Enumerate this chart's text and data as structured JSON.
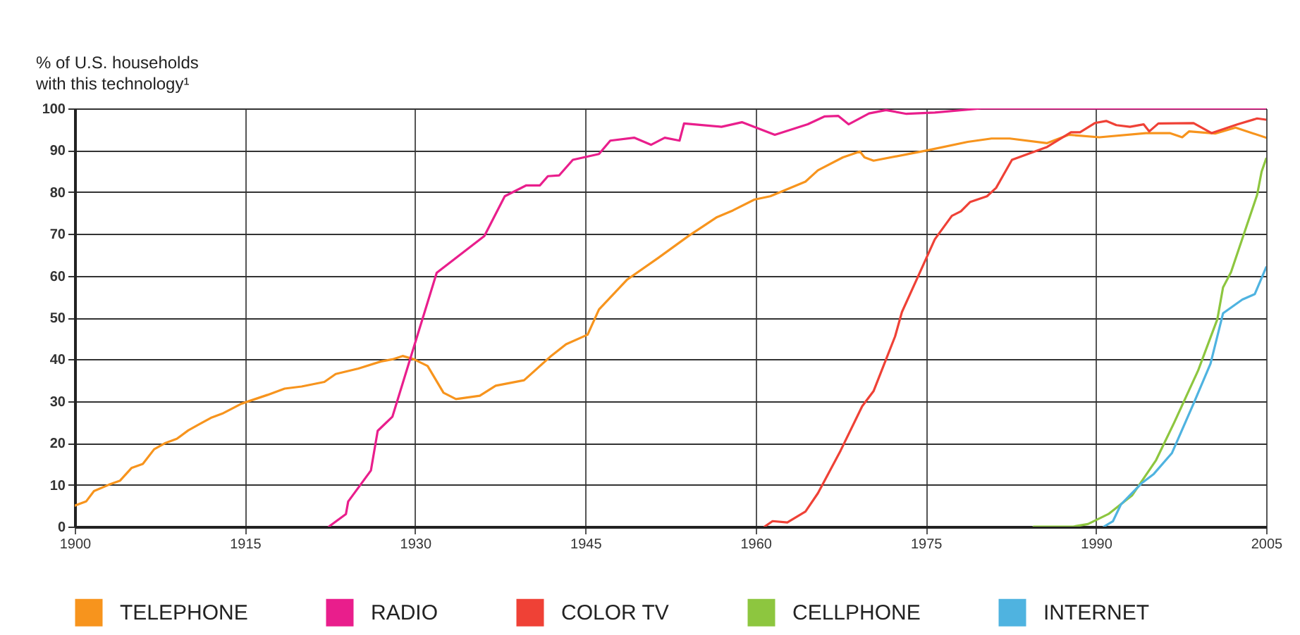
{
  "chart_data": {
    "type": "line",
    "ylabel": "% of U.S. households\nwith this technology¹",
    "xlim": [
      1900,
      2005
    ],
    "xticks": [
      1900,
      1915,
      1930,
      1945,
      1960,
      1975,
      1990,
      2005
    ],
    "ylim": [
      0,
      100
    ],
    "yticks": [
      0,
      10,
      20,
      30,
      40,
      50,
      60,
      70,
      80,
      90,
      100
    ],
    "grid": true,
    "legend": "bottom",
    "marker": "none",
    "line_style": "solid",
    "series": [
      {
        "name": "TELEPHONE",
        "color": "#f7941d",
        "x": [
          1900,
          1901,
          1901.7,
          1903,
          1904,
          1905,
          1906,
          1907,
          1908,
          1909,
          1910,
          1911,
          1912,
          1913,
          1914.7,
          1917,
          1918.5,
          1920,
          1922,
          1923,
          1925,
          1927,
          1928,
          1928.9,
          1929.9,
          1931.1,
          1932.5,
          1933.6,
          1935.7,
          1937.1,
          1939.6,
          1941.9,
          1943.3,
          1945.2,
          1946.2,
          1948.7,
          1951.4,
          1954.1,
          1956.6,
          1958,
          1959.9,
          1961.3,
          1964.4,
          1965.5,
          1967.7,
          1969.2,
          1969.6,
          1970.4,
          1975.2,
          1978.7,
          1980.8,
          1982.4,
          1985.7,
          1987.6,
          1990.3,
          1994.4,
          1996.5,
          1997.6,
          1998.2,
          2000.5,
          2002.3,
          2005
        ],
        "values": [
          5,
          6,
          8.5,
          10,
          11,
          14,
          15,
          18.5,
          20,
          21,
          23,
          24.5,
          26,
          27,
          29.4,
          31.5,
          33,
          33.5,
          34.6,
          36.5,
          37.8,
          39.5,
          40,
          40.8,
          40,
          38.4,
          32,
          30.5,
          31.3,
          33.7,
          35,
          40.6,
          43.6,
          45.9,
          51.9,
          59.1,
          64.2,
          69.5,
          74,
          75.6,
          78.2,
          79,
          82.5,
          85.2,
          88.3,
          89.7,
          88.3,
          87.5,
          90,
          92,
          92.8,
          92.8,
          91.7,
          93.7,
          93.1,
          94.1,
          94.1,
          93.1,
          94.5,
          94,
          95.4,
          93
        ]
      },
      {
        "name": "RADIO",
        "color": "#e91e8c",
        "x": [
          1922.4,
          1923.9,
          1924.1,
          1926.1,
          1926.7,
          1928,
          1931.9,
          1936.1,
          1937.9,
          1939.8,
          1941,
          1941.7,
          1942.7,
          1943.9,
          1946.2,
          1947.2,
          1949.3,
          1950.8,
          1952,
          1953.3,
          1953.7,
          1957,
          1958.8,
          1961.7,
          1964.6,
          1966.1,
          1967.3,
          1968.2,
          1970,
          1971.5,
          1973.3,
          1975.8,
          1979.9,
          2005
        ],
        "values": [
          0,
          3,
          6,
          13.4,
          22.9,
          26.3,
          60.7,
          69.5,
          79,
          81.6,
          81.6,
          83.8,
          84,
          87.7,
          89.1,
          92.3,
          93,
          91.3,
          93,
          92.3,
          96.4,
          95.6,
          96.7,
          93.7,
          96.2,
          98.1,
          98.2,
          96.2,
          98.8,
          99.6,
          98.7,
          99,
          100,
          100
        ]
      },
      {
        "name": "COLOR TV",
        "color": "#ef4136",
        "x": [
          1960.8,
          1961.5,
          1962.8,
          1964.4,
          1965.5,
          1967.5,
          1969.4,
          1970.4,
          1972.3,
          1972.9,
          1974.4,
          1975.8,
          1977.3,
          1978.1,
          1978.9,
          1980.4,
          1981.2,
          1982.6,
          1985.7,
          1987.8,
          1988.6,
          1989.9,
          1990.9,
          1991.8,
          1993,
          1994.2,
          1994.7,
          1995.5,
          1998.6,
          2000.2,
          2002.5,
          2004.2,
          2005
        ],
        "values": [
          0,
          1.3,
          1,
          3.6,
          8,
          18.2,
          28.8,
          32.4,
          45.5,
          51.3,
          60.3,
          68.7,
          74.3,
          75.4,
          77.6,
          79,
          81,
          87.7,
          90.8,
          94.3,
          94.3,
          96.5,
          97,
          96,
          95.6,
          96.2,
          94.5,
          96.4,
          96.5,
          94.1,
          96.2,
          97.6,
          97.3
        ]
      },
      {
        "name": "CELLPHONE",
        "color": "#8dc63f",
        "x": [
          1984.5,
          1988,
          1989.3,
          1991.1,
          1993.2,
          1995.3,
          1996.9,
          1999,
          2000.7,
          2001.2,
          2001.9,
          2004.2,
          2004.6,
          2005
        ],
        "values": [
          0,
          0,
          0.6,
          3,
          7.5,
          15.9,
          24.9,
          37.3,
          49.6,
          57.2,
          60.8,
          79.3,
          84.9,
          88
        ]
      },
      {
        "name": "INTERNET",
        "color": "#4fb3e0",
        "x": [
          1990.7,
          1991.5,
          1992.2,
          1994,
          1995.1,
          1996.7,
          1998.6,
          2000.1,
          2001.2,
          2002.9,
          2004,
          2005
        ],
        "values": [
          0,
          1.3,
          5.3,
          10.3,
          12.6,
          17.6,
          29.4,
          39,
          51,
          54.3,
          55.6,
          62
        ]
      }
    ]
  }
}
